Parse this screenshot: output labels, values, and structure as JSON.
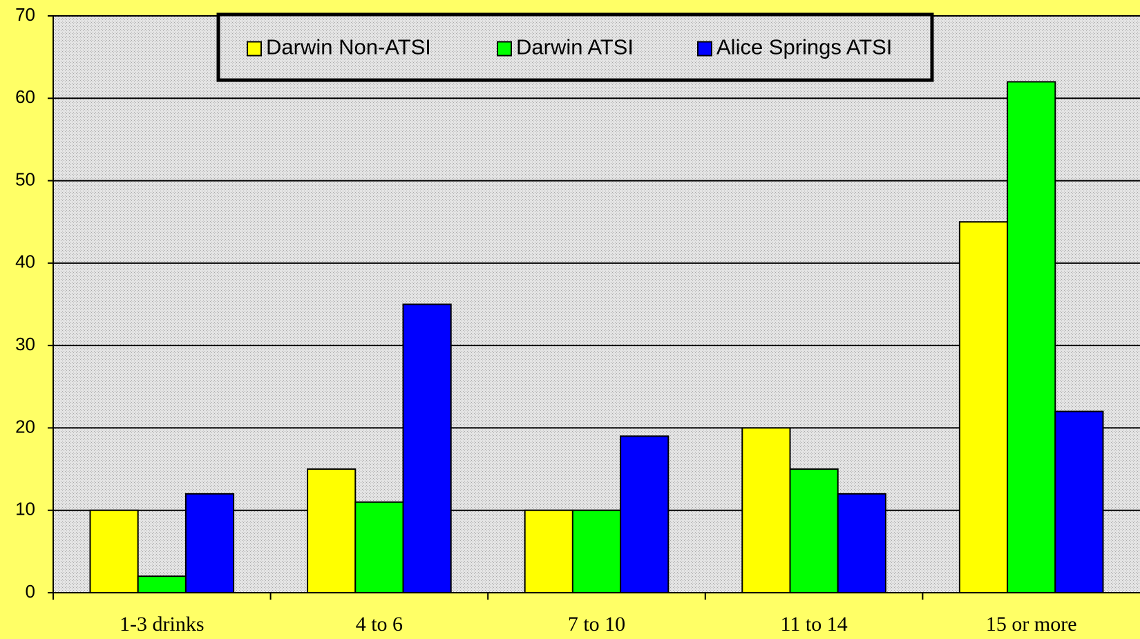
{
  "chart_data": {
    "type": "bar",
    "categories": [
      "1-3 drinks",
      "4 to 6",
      "7 to 10",
      "11 to 14",
      "15 or more"
    ],
    "series": [
      {
        "name": "Darwin Non-ATSI",
        "color": "#ffff00",
        "values": [
          10,
          15,
          10,
          20,
          45
        ]
      },
      {
        "name": "Darwin ATSI",
        "color": "#00ff00",
        "values": [
          2,
          11,
          10,
          15,
          62
        ]
      },
      {
        "name": "Alice Springs ATSI",
        "color": "#0000ff",
        "values": [
          12,
          35,
          19,
          12,
          22
        ]
      }
    ],
    "ylim": [
      0,
      70
    ],
    "yticks": [
      0,
      10,
      20,
      30,
      40,
      50,
      60,
      70
    ],
    "grid": true,
    "legend": "top"
  }
}
